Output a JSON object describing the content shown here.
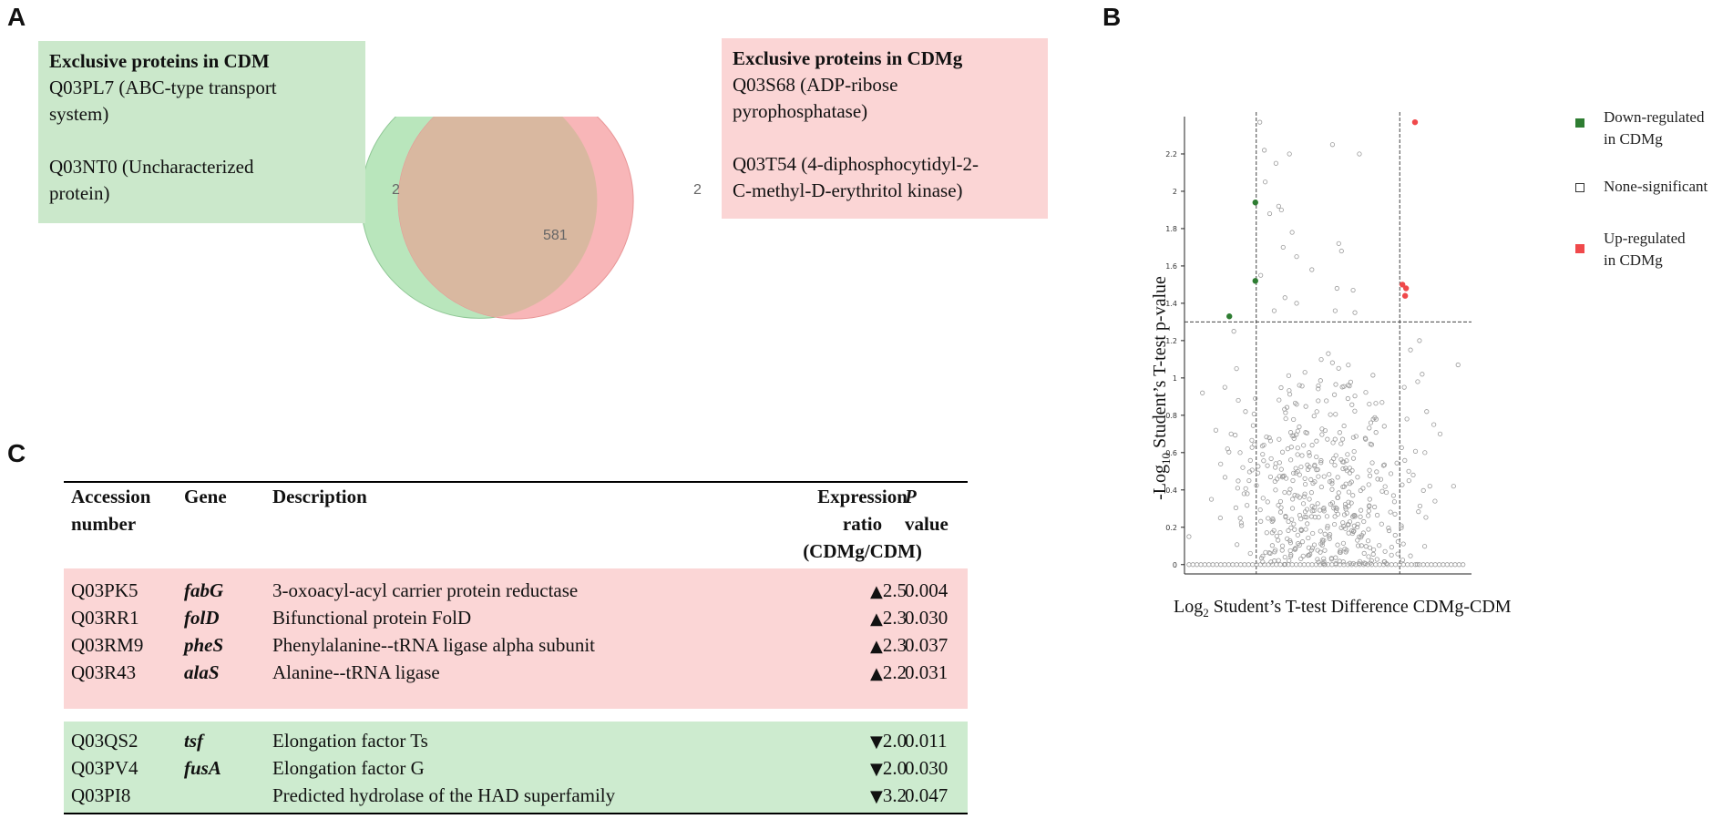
{
  "panels": {
    "a": "A",
    "b": "B",
    "c": "C"
  },
  "venn": {
    "left_box": {
      "title": "Exclusive proteins in CDM",
      "item1_line1": "Q03PL7 (ABC-type transport",
      "item1_line2": "system)",
      "item2_line1": "Q03NT0 (Uncharacterized",
      "item2_line2": "protein)"
    },
    "right_box": {
      "title": "Exclusive proteins in CDMg",
      "item1_line1": "Q03S68 (ADP-ribose",
      "item1_line2": "pyrophosphatase)",
      "item2_line1": "Q03T54 (4-diphosphocytidyl-2-",
      "item2_line2": "C-methyl-D-erythritol kinase)"
    },
    "left_only": "2",
    "shared": "581",
    "right_only": "2",
    "colors": {
      "left": "#b9e6bc",
      "right": "#f8b6b8",
      "overlap": "#d9b8a0"
    }
  },
  "volcano": {
    "y_title_prefix": "-Log",
    "y_title_sub": "10",
    "y_title_suffix": " Student’s T-test p-value",
    "x_title_prefix": "Log",
    "x_title_sub": "2",
    "x_title_suffix": " Student’s T-test Difference CDMg-CDM",
    "legend": {
      "down_line1": "Down-regulated",
      "down_line2": "in CDMg",
      "none": "None-significant",
      "up_line1": "Up-regulated",
      "up_line2": "in CDMg",
      "down_color": "#2e7d32",
      "up_color": "#f0494b"
    }
  },
  "chart_data": {
    "type": "scatter",
    "title": "",
    "xlabel": "Log2 Student’s T-test Difference CDMg-CDM",
    "ylabel": "-Log10 Student’s T-test p-value",
    "xlim": [
      -1.6,
      1.6
    ],
    "ylim": [
      -0.05,
      2.4
    ],
    "y_ticks": [
      "0",
      "0.2",
      "0.4",
      "0.6",
      "0.8",
      "1",
      "1.2",
      "1.4",
      "1.6",
      "1.8",
      "2",
      "2.2"
    ],
    "y_tick_values": [
      0,
      0.2,
      0.4,
      0.6,
      0.8,
      1.0,
      1.2,
      1.4,
      1.6,
      1.8,
      2.0,
      2.2
    ],
    "threshold_y": 1.3,
    "threshold_x": [
      -0.8,
      0.8
    ],
    "series": [
      {
        "name": "Down-regulated in CDMg",
        "color": "#2e7d32",
        "points": [
          [
            -0.81,
            1.94
          ],
          [
            -0.81,
            1.52
          ],
          [
            -1.1,
            1.33
          ]
        ]
      },
      {
        "name": "Up-regulated in CDMg",
        "color": "#f0494b",
        "points": [
          [
            0.97,
            2.37
          ],
          [
            0.83,
            1.5
          ],
          [
            0.87,
            1.48
          ],
          [
            0.86,
            1.44
          ]
        ]
      },
      {
        "name": "None-significant",
        "color": "#999999",
        "points": [
          [
            -0.76,
            2.37
          ],
          [
            -0.71,
            2.22
          ],
          [
            -0.7,
            2.05
          ],
          [
            -0.58,
            2.15
          ],
          [
            -0.43,
            2.2
          ],
          [
            0.05,
            2.25
          ],
          [
            0.35,
            2.2
          ],
          [
            -0.55,
            1.92
          ],
          [
            -0.52,
            1.9
          ],
          [
            -0.65,
            1.88
          ],
          [
            -0.4,
            1.78
          ],
          [
            -0.75,
            1.55
          ],
          [
            -0.5,
            1.7
          ],
          [
            -0.35,
            1.65
          ],
          [
            0.12,
            1.72
          ],
          [
            0.15,
            1.68
          ],
          [
            -0.18,
            1.58
          ],
          [
            0.1,
            1.48
          ],
          [
            0.28,
            1.47
          ],
          [
            -0.48,
            1.43
          ],
          [
            -0.35,
            1.4
          ],
          [
            0.08,
            1.36
          ],
          [
            0.3,
            1.35
          ],
          [
            -0.6,
            1.36
          ],
          [
            -1.55,
            0.15
          ],
          [
            -1.4,
            0.92
          ],
          [
            -1.3,
            0.35
          ],
          [
            -1.25,
            0.72
          ],
          [
            -1.2,
            0.25
          ],
          [
            -1.12,
            0.62
          ],
          [
            -1.05,
            1.25
          ],
          [
            -1.02,
            1.05
          ],
          [
            -0.95,
            0.52
          ],
          [
            -0.92,
            0.82
          ],
          [
            -0.9,
            0.38
          ],
          [
            -0.88,
            0.45
          ],
          [
            1.02,
            1.2
          ],
          [
            1.05,
            1.02
          ],
          [
            1.1,
            0.82
          ],
          [
            1.18,
            0.75
          ],
          [
            1.25,
            0.7
          ],
          [
            1.45,
            1.07
          ],
          [
            1.4,
            0.42
          ],
          [
            0.95,
            0.48
          ],
          [
            0.92,
            1.15
          ],
          [
            0.88,
            0.78
          ],
          [
            0.85,
            0.95
          ],
          [
            0.9,
            0.5
          ],
          [
            1.0,
            0.98
          ],
          [
            1.08,
            0.6
          ],
          [
            -1.0,
            0.88
          ],
          [
            -0.98,
            0.6
          ],
          [
            -1.08,
            0.7
          ],
          [
            -1.15,
            0.95
          ]
        ]
      }
    ]
  },
  "table": {
    "headers": {
      "accession_line1": "Accession",
      "accession_line2": "number",
      "gene": "Gene",
      "description": "Description",
      "ratio_line1": "Expression",
      "ratio_line2": "ratio",
      "ratio_line3": "(CDMg/CDM)",
      "p_line1": "P",
      "p_line2": "value"
    },
    "up_rows": [
      {
        "accession": "Q03PK5",
        "gene": "fabG",
        "description": "3-oxoacyl-acyl carrier protein reductase",
        "arrow": "▲",
        "ratio": "2.5",
        "p": "0.004"
      },
      {
        "accession": "Q03RR1",
        "gene": "folD",
        "description": "Bifunctional protein FolD",
        "arrow": "▲",
        "ratio": "2.3",
        "p": "0.030"
      },
      {
        "accession": "Q03RM9",
        "gene": "pheS",
        "description": "Phenylalanine--tRNA ligase alpha subunit",
        "arrow": "▲",
        "ratio": "2.3",
        "p": "0.037"
      },
      {
        "accession": "Q03R43",
        "gene": "alaS",
        "description": "Alanine--tRNA ligase",
        "arrow": "▲",
        "ratio": "2.2",
        "p": "0.031"
      }
    ],
    "down_rows": [
      {
        "accession": "Q03QS2",
        "gene": "tsf",
        "description": "Elongation factor Ts",
        "arrow": "▼",
        "ratio": "2.0",
        "p": "0.011"
      },
      {
        "accession": "Q03PV4",
        "gene": "fusA",
        "description": "Elongation factor G",
        "arrow": "▼",
        "ratio": "2.0",
        "p": "0.030"
      },
      {
        "accession": "Q03PI8",
        "gene": "",
        "description": "Predicted hydrolase of the HAD superfamily",
        "arrow": "▼",
        "ratio": "3.2",
        "p": "0.047"
      }
    ],
    "colors": {
      "up_band": "#fbd6d6",
      "down_band": "#cdebcf"
    }
  }
}
